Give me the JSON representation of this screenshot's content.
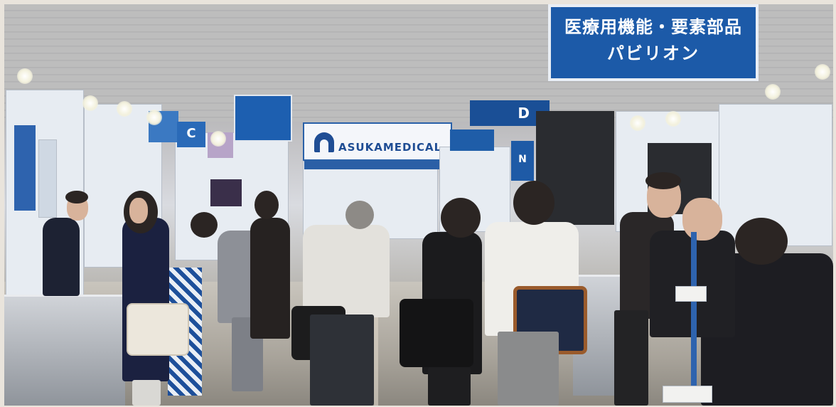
{
  "photo": {
    "subject": "",
    "signs": {
      "pavilion_line1": "医療用機能・要素部品",
      "pavilion_line2": "パビリオン",
      "pavilion_small": "",
      "hall_letter_d": "D",
      "hall_letter_c": "C",
      "booth_sign": "",
      "asuka_brand": "ASUKAMEDICAL",
      "aisle_n": "N"
    }
  }
}
